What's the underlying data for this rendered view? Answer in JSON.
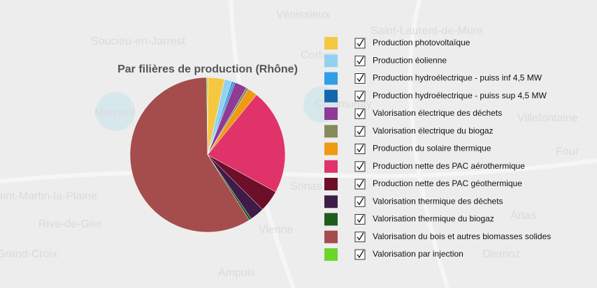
{
  "chart_data": {
    "type": "pie",
    "title": "Par filières de production (Rhône)",
    "categories": [
      "Production photovoltaïque",
      "Production éolienne",
      "Production hydroélectrique - puiss inf 4,5 MW",
      "Production hydroélectrique - puiss sup 4,5 MW",
      "Valorisation électrique des déchets",
      "Valorisation électrique du biogaz",
      "Production du solaire thermique",
      "Production nette des PAC aérothermique",
      "Production nette des PAC géothermique",
      "Valorisation thermique des déchets",
      "Valorisation thermique du biogaz",
      "Valorisation du bois et autres biomasses solides",
      "Valorisation par injection"
    ],
    "values": [
      3.5,
      1.5,
      0.5,
      0.3,
      2.5,
      0.5,
      2,
      22,
      4.5,
      3,
      0.5,
      58.5,
      0.2
    ],
    "colors": [
      "#f5c842",
      "#92d2f0",
      "#2f9fe8",
      "#1567aa",
      "#8e3a96",
      "#878a5c",
      "#ee9a12",
      "#e0336a",
      "#6e0f2a",
      "#3f1c48",
      "#1f5a1f",
      "#a54d4d",
      "#6cd52a"
    ],
    "legend": "right"
  },
  "background_labels": [
    "Vénissieux",
    "Soucieu-en-Jarrest",
    "Saint-Laurent-de-Mure",
    "Corbas",
    "Mornant",
    "Communay",
    "Villefontaine",
    "Four",
    "Saint-Martin-la-Plaine",
    "Rive-de-Gier",
    "Vienne",
    "Artas",
    "Grand-Croix",
    "Ampuis",
    "Diemoz",
    "Sonas"
  ]
}
